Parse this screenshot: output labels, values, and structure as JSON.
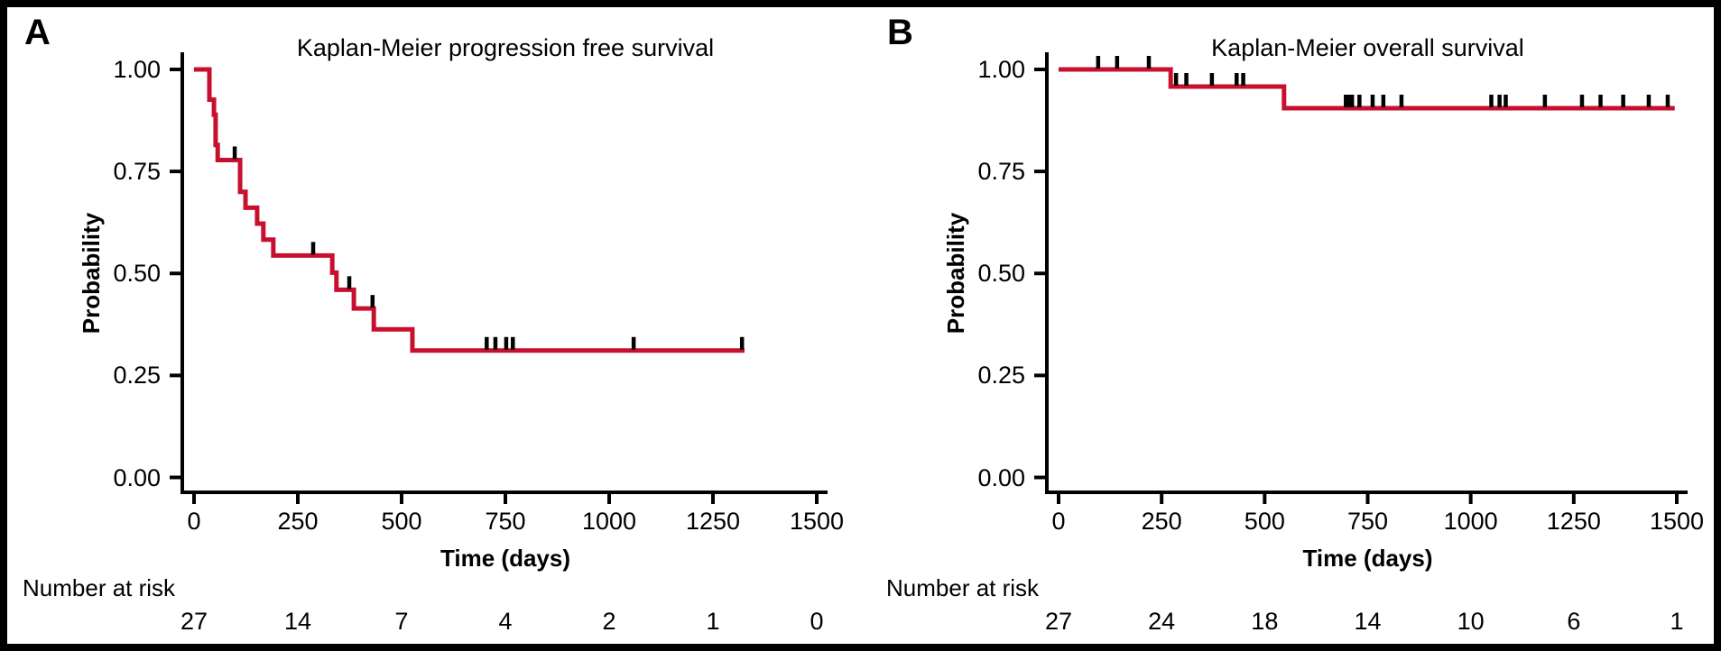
{
  "figure": {
    "background_color": "#ffffff",
    "frame_color": "#000000",
    "axis_color": "#000000"
  },
  "chart_data": [
    {
      "type": "line",
      "subtype": "kaplan-meier-step",
      "panel_label": "A",
      "title": "Kaplan-Meier progression free survival",
      "xlabel": "Time (days)",
      "ylabel": "Probability",
      "xlim": [
        0,
        1500
      ],
      "ylim": [
        0,
        1
      ],
      "grid": "off",
      "legend": "none",
      "x_tick_values": [
        0,
        250,
        500,
        750,
        1000,
        1250,
        1500
      ],
      "x_tick_labels": [
        "0",
        "250",
        "500",
        "750",
        "1000",
        "1250",
        "1500"
      ],
      "y_tick_values": [
        0,
        0.25,
        0.5,
        0.75,
        1
      ],
      "y_tick_labels": [
        "0.00",
        "0.25",
        "0.50",
        "0.75",
        "1.00"
      ],
      "line_color": "#c8102e",
      "censor_color": "#000000",
      "end_time": 1326,
      "steps": [
        [
          0,
          1.0
        ],
        [
          37,
          0.926
        ],
        [
          48,
          0.889
        ],
        [
          52,
          0.815
        ],
        [
          57,
          0.778
        ],
        [
          111,
          0.7
        ],
        [
          124,
          0.661
        ],
        [
          152,
          0.622
        ],
        [
          167,
          0.583
        ],
        [
          191,
          0.544
        ],
        [
          333,
          0.502
        ],
        [
          343,
          0.46
        ],
        [
          385,
          0.414
        ],
        [
          433,
          0.363
        ],
        [
          526,
          0.311
        ]
      ],
      "censor_marks": [
        [
          98,
          0.778
        ],
        [
          287,
          0.544
        ],
        [
          374,
          0.46
        ],
        [
          430,
          0.414
        ],
        [
          705,
          0.311
        ],
        [
          726,
          0.311
        ],
        [
          752,
          0.311
        ],
        [
          768,
          0.311
        ],
        [
          1059,
          0.311
        ],
        [
          1320,
          0.311
        ]
      ],
      "number_at_risk": {
        "label": "Number at risk",
        "times": [
          0,
          250,
          500,
          750,
          1000,
          1250,
          1500
        ],
        "counts": [
          "27",
          "14",
          "7",
          "4",
          "2",
          "1",
          "0"
        ]
      }
    },
    {
      "type": "line",
      "subtype": "kaplan-meier-step",
      "panel_label": "B",
      "title": "Kaplan-Meier overall survival",
      "xlabel": "Time (days)",
      "ylabel": "Probability",
      "xlim": [
        0,
        1500
      ],
      "ylim": [
        0,
        1
      ],
      "grid": "off",
      "legend": "none",
      "x_tick_values": [
        0,
        250,
        500,
        750,
        1000,
        1250,
        1500
      ],
      "x_tick_labels": [
        "0",
        "250",
        "500",
        "750",
        "1000",
        "1250",
        "1500"
      ],
      "y_tick_values": [
        0,
        0.25,
        0.5,
        0.75,
        1
      ],
      "y_tick_labels": [
        "0.00",
        "0.25",
        "0.50",
        "0.75",
        "1.00"
      ],
      "line_color": "#c8102e",
      "censor_color": "#000000",
      "end_time": 1495,
      "steps": [
        [
          0,
          1.0
        ],
        [
          272,
          0.958
        ],
        [
          547,
          0.905
        ]
      ],
      "censor_marks": [
        [
          96,
          1.0
        ],
        [
          142,
          1.0
        ],
        [
          219,
          1.0
        ],
        [
          285,
          0.958
        ],
        [
          310,
          0.958
        ],
        [
          372,
          0.958
        ],
        [
          432,
          0.958
        ],
        [
          448,
          0.958
        ],
        [
          697,
          0.905
        ],
        [
          703,
          0.905
        ],
        [
          712,
          0.905
        ],
        [
          730,
          0.905
        ],
        [
          762,
          0.905
        ],
        [
          788,
          0.905
        ],
        [
          832,
          0.905
        ],
        [
          1050,
          0.905
        ],
        [
          1070,
          0.905
        ],
        [
          1085,
          0.905
        ],
        [
          1180,
          0.905
        ],
        [
          1270,
          0.905
        ],
        [
          1315,
          0.905
        ],
        [
          1370,
          0.905
        ],
        [
          1432,
          0.905
        ],
        [
          1478,
          0.905
        ]
      ],
      "number_at_risk": {
        "label": "Number at risk",
        "times": [
          0,
          250,
          500,
          750,
          1000,
          1250,
          1500
        ],
        "counts": [
          "27",
          "24",
          "18",
          "14",
          "10",
          "6",
          "1"
        ]
      }
    }
  ]
}
